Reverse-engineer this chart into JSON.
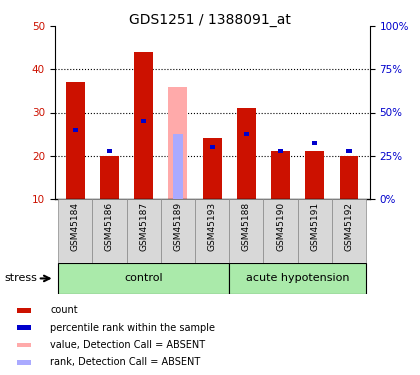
{
  "title": "GDS1251 / 1388091_at",
  "samples": [
    "GSM45184",
    "GSM45186",
    "GSM45187",
    "GSM45189",
    "GSM45193",
    "GSM45188",
    "GSM45190",
    "GSM45191",
    "GSM45192"
  ],
  "red_values": [
    37,
    20,
    44,
    0,
    24,
    31,
    21,
    21,
    20
  ],
  "blue_values": [
    26,
    21,
    28,
    0,
    22,
    25,
    21,
    23,
    21
  ],
  "pink_value": 36,
  "lightblue_value": 25,
  "absent_index": 3,
  "ylim_left": [
    10,
    50
  ],
  "ylim_right": [
    0,
    100
  ],
  "yticks_left": [
    10,
    20,
    30,
    40,
    50
  ],
  "yticks_right": [
    0,
    25,
    50,
    75,
    100
  ],
  "ytick_labels_right": [
    "0%",
    "25%",
    "50%",
    "75%",
    "100%"
  ],
  "groups": [
    {
      "label": "control",
      "indices": [
        0,
        1,
        2,
        3,
        4
      ]
    },
    {
      "label": "acute hypotension",
      "indices": [
        5,
        6,
        7,
        8
      ]
    }
  ],
  "stress_label": "stress",
  "red_color": "#cc1100",
  "blue_color": "#0000cc",
  "pink_color": "#ffaaaa",
  "lightblue_color": "#aaaaff",
  "group_bg_color": "#aaeaaa",
  "sample_bg_color": "#d8d8d8",
  "legend_items": [
    {
      "color": "#cc1100",
      "label": "count"
    },
    {
      "color": "#0000cc",
      "label": "percentile rank within the sample"
    },
    {
      "color": "#ffaaaa",
      "label": "value, Detection Call = ABSENT"
    },
    {
      "color": "#aaaaff",
      "label": "rank, Detection Call = ABSENT"
    }
  ]
}
